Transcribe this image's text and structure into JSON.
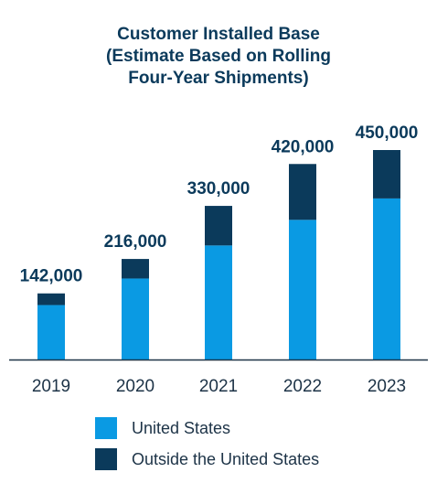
{
  "chart_data": {
    "type": "bar",
    "stacked": true,
    "title_lines": [
      "Customer Installed Base",
      "(Estimate Based on Rolling",
      "Four-Year Shipments)"
    ],
    "categories": [
      "2019",
      "2020",
      "2021",
      "2022",
      "2023"
    ],
    "totals": [
      "142,000",
      "216,000",
      "330,000",
      "420,000",
      "450,000"
    ],
    "series": [
      {
        "name": "United States",
        "color": "#0a9ae3",
        "values": [
          117000,
          174000,
          245000,
          300000,
          346000
        ]
      },
      {
        "name": "Outside the United States",
        "color": "#0b3a5b",
        "values": [
          25000,
          42000,
          85000,
          120000,
          104000
        ]
      }
    ],
    "ylim": [
      0,
      450000
    ],
    "grid": false,
    "legend_position": "bottom"
  }
}
